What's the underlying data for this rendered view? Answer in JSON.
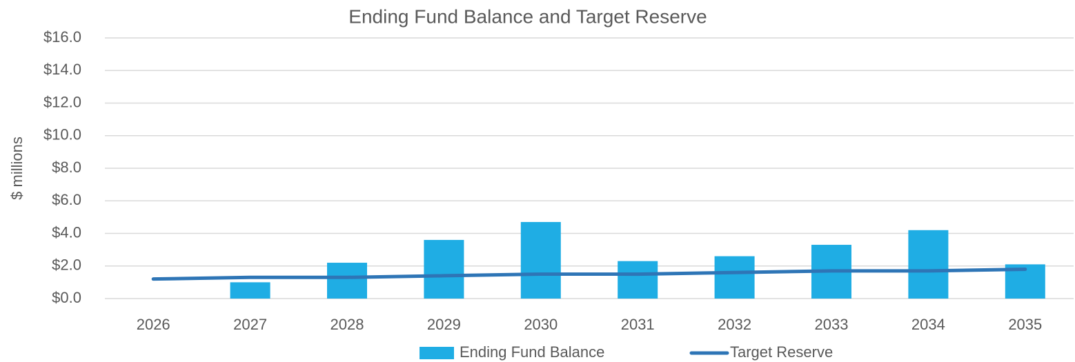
{
  "chart_data": {
    "type": "bar",
    "title": "Ending Fund Balance and Target Reserve",
    "y_label": "$ millions",
    "categories": [
      "2026",
      "2027",
      "2028",
      "2029",
      "2030",
      "2031",
      "2032",
      "2033",
      "2034",
      "2035"
    ],
    "series": [
      {
        "name": "Ending Fund Balance",
        "type": "bar",
        "color": "#1fade4",
        "values": [
          0,
          1.0,
          2.2,
          3.6,
          4.7,
          2.3,
          2.6,
          3.3,
          4.2,
          2.1
        ]
      },
      {
        "name": "Target Reserve",
        "type": "line",
        "color": "#2e75b6",
        "values": [
          1.2,
          1.3,
          1.3,
          1.4,
          1.5,
          1.5,
          1.6,
          1.7,
          1.7,
          1.8
        ]
      }
    ],
    "ylim": [
      0,
      16
    ],
    "yticks": [
      {
        "value": 0,
        "label": "$0.0"
      },
      {
        "value": 2,
        "label": "$2.0"
      },
      {
        "value": 4,
        "label": "$4.0"
      },
      {
        "value": 6,
        "label": "$6.0"
      },
      {
        "value": 8,
        "label": "$8.0"
      },
      {
        "value": 10,
        "label": "$10.0"
      },
      {
        "value": 12,
        "label": "$12.0"
      },
      {
        "value": 14,
        "label": "$14.0"
      },
      {
        "value": 16,
        "label": "$16.0"
      }
    ],
    "grid": true,
    "legend": "bottom"
  }
}
